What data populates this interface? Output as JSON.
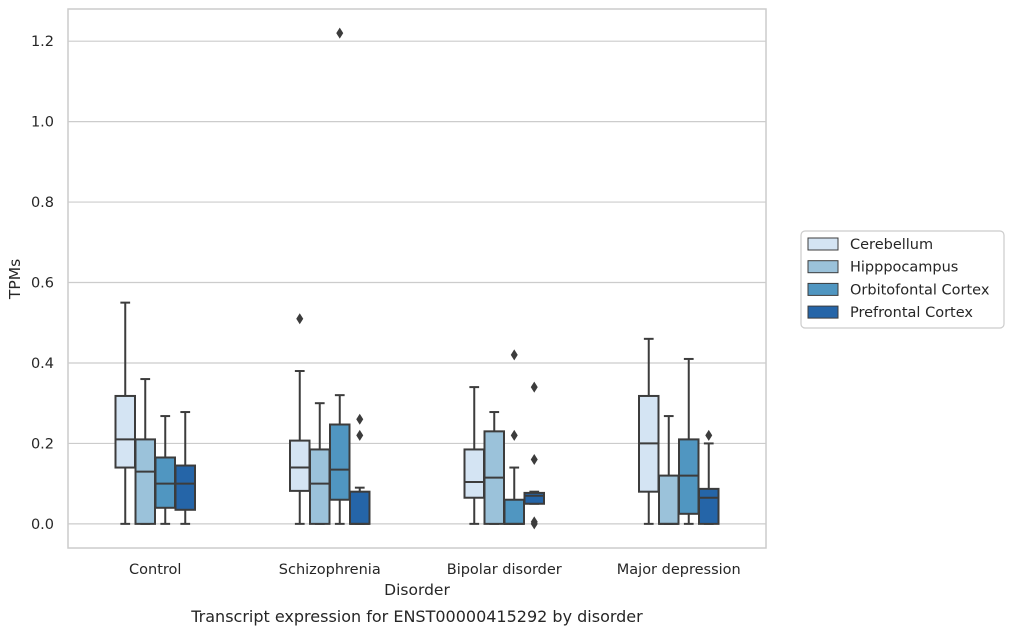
{
  "chart_data": {
    "type": "box",
    "title": "",
    "caption": "Transcript expression for ENST00000415292 by disorder",
    "xlabel": "Disorder",
    "ylabel": "TPMs",
    "ylim": [
      -0.06,
      1.28
    ],
    "yticks": [
      0.0,
      0.2,
      0.4,
      0.6,
      0.8,
      1.0,
      1.2
    ],
    "ytick_labels": [
      "0.0",
      "0.2",
      "0.4",
      "0.6",
      "0.8",
      "1.0",
      "1.2"
    ],
    "grid": "horizontal",
    "legend_position": "right, outside plot",
    "categories": [
      "Control",
      "Schizophrenia",
      "Bipolar disorder",
      "Major depression"
    ],
    "series": [
      {
        "name": "Cerebellum",
        "color": "#d4e4f3",
        "boxes": [
          {
            "whislo": 0.0,
            "q1": 0.14,
            "med": 0.21,
            "q3": 0.318,
            "whishi": 0.55,
            "fliers": []
          },
          {
            "whislo": 0.0,
            "q1": 0.082,
            "med": 0.14,
            "q3": 0.207,
            "whishi": 0.38,
            "fliers": [
              0.51
            ]
          },
          {
            "whislo": 0.0,
            "q1": 0.065,
            "med": 0.104,
            "q3": 0.185,
            "whishi": 0.34,
            "fliers": []
          },
          {
            "whislo": 0.0,
            "q1": 0.08,
            "med": 0.2,
            "q3": 0.318,
            "whishi": 0.46,
            "fliers": []
          }
        ]
      },
      {
        "name": "Hipppocampus",
        "color": "#9bc2da",
        "boxes": [
          {
            "whislo": 0.0,
            "q1": 0.0,
            "med": 0.13,
            "q3": 0.21,
            "whishi": 0.36,
            "fliers": []
          },
          {
            "whislo": 0.0,
            "q1": 0.0,
            "med": 0.1,
            "q3": 0.185,
            "whishi": 0.3,
            "fliers": []
          },
          {
            "whislo": 0.0,
            "q1": 0.0,
            "med": 0.115,
            "q3": 0.23,
            "whishi": 0.278,
            "fliers": []
          },
          {
            "whislo": 0.0,
            "q1": 0.0,
            "med": 0.0,
            "q3": 0.12,
            "whishi": 0.268,
            "fliers": []
          }
        ]
      },
      {
        "name": "Orbitofontal Cortex",
        "color": "#5096c1",
        "boxes": [
          {
            "whislo": 0.0,
            "q1": 0.04,
            "med": 0.1,
            "q3": 0.165,
            "whishi": 0.268,
            "fliers": []
          },
          {
            "whislo": 0.0,
            "q1": 0.06,
            "med": 0.135,
            "q3": 0.247,
            "whishi": 0.32,
            "fliers": [
              1.22
            ]
          },
          {
            "whislo": 0.0,
            "q1": 0.0,
            "med": 0.0,
            "q3": 0.06,
            "whishi": 0.14,
            "fliers": [
              0.42,
              0.22
            ]
          },
          {
            "whislo": 0.0,
            "q1": 0.025,
            "med": 0.12,
            "q3": 0.21,
            "whishi": 0.41,
            "fliers": []
          }
        ]
      },
      {
        "name": "Prefrontal Cortex",
        "color": "#2565a8",
        "boxes": [
          {
            "whislo": 0.0,
            "q1": 0.035,
            "med": 0.1,
            "q3": 0.145,
            "whishi": 0.278,
            "fliers": []
          },
          {
            "whislo": 0.0,
            "q1": 0.0,
            "med": 0.0,
            "q3": 0.08,
            "whishi": 0.09,
            "fliers": [
              0.26,
              0.22
            ]
          },
          {
            "whislo": 0.05,
            "q1": 0.05,
            "med": 0.07,
            "q3": 0.077,
            "whishi": 0.08,
            "fliers": [
              0.34,
              0.16,
              0.005,
              0.0
            ]
          },
          {
            "whislo": 0.0,
            "q1": 0.0,
            "med": 0.065,
            "q3": 0.087,
            "whishi": 0.2,
            "fliers": [
              0.22
            ]
          }
        ]
      }
    ]
  }
}
